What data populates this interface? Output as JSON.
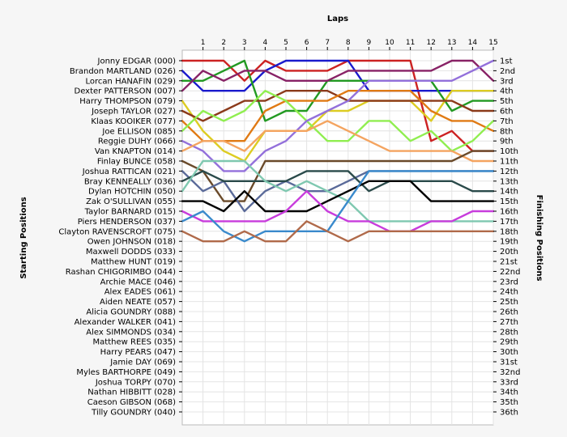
{
  "chart_data": {
    "type": "line",
    "title": "",
    "xlabel": "Laps",
    "ylabel_left": "Starting Positions",
    "ylabel_right": "Finishing Positions",
    "x": [
      0,
      1,
      2,
      3,
      4,
      5,
      6,
      7,
      8,
      9,
      10,
      11,
      12,
      13,
      14,
      15
    ],
    "x_tick_labels": [
      "1",
      "2",
      "3",
      "4",
      "5",
      "6",
      "7",
      "8",
      "9",
      "10",
      "11",
      "12",
      "13",
      "14",
      "15"
    ],
    "ylim": [
      1,
      36
    ],
    "y_inverted": true,
    "grid": true,
    "starting_positions": [
      "Jonny EDGAR (000)",
      "Brandon MARTLAND (026)",
      "Lorcan HANAFIN (029)",
      "Dexter PATTERSON (007)",
      "Harry THOMPSON (079)",
      "Joseph TAYLOR (027)",
      "Klaas KOOIKER (077)",
      "Joe ELLISON (085)",
      "Reggie DUHY (066)",
      "Van KNAPTON (014)",
      "Finlay BUNCE (058)",
      "Joshua RATTICAN (021)",
      "Bray KENNEALLY (036)",
      "Dylan HOTCHIN (050)",
      "Zak O'SULLIVAN (055)",
      "Taylor BARNARD (015)",
      "Piers HENDERSON (037)",
      "Clayton RAVENSCROFT (075)",
      "Owen JOHNSON (018)",
      "Maxwell DODDS (033)",
      "Matthew HUNT (019)",
      "Rashan CHIGORIMBO (044)",
      "Archie MACE (046)",
      "Alex EADES (061)",
      "Aiden NEATE (057)",
      "Alicia GOUNDRY (088)",
      "Alexander WALKER (041)",
      "Alex SIMMONDS (034)",
      "Matthew REES (035)",
      "Harry PEARS (047)",
      "Jamie DAY (069)",
      "Myles BARTHORPE (049)",
      "Joshua TORPY (070)",
      "Nathan HIBBITT (028)",
      "Caeson GIBSON (068)",
      "Tilly GOUNDRY (040)"
    ],
    "finishing_positions": [
      "1st",
      "2nd",
      "3rd",
      "4th",
      "5th",
      "6th",
      "7th",
      "8th",
      "9th",
      "10th",
      "11th",
      "12th",
      "13th",
      "14th",
      "15th",
      "16th",
      "17th",
      "18th",
      "19th",
      "20th",
      "21st",
      "22nd",
      "23rd",
      "24th",
      "25th",
      "26th",
      "27th",
      "28th",
      "29th",
      "30th",
      "31st",
      "32nd",
      "33rd",
      "34th",
      "35th",
      "36th"
    ],
    "series": [
      {
        "color": "#cc2222",
        "values": [
          1,
          1,
          1,
          3,
          1,
          2,
          2,
          2,
          1,
          1,
          1,
          1,
          9,
          8,
          10,
          10
        ]
      },
      {
        "color": "#1a1acc",
        "values": [
          2,
          4,
          4,
          4,
          2,
          1,
          1,
          1,
          1,
          4,
          4,
          4,
          4,
          4,
          4,
          4
        ]
      },
      {
        "color": "#229922",
        "values": [
          3,
          3,
          2,
          1,
          7,
          6,
          6,
          3,
          3,
          3,
          3,
          3,
          3,
          6,
          5,
          5
        ]
      },
      {
        "color": "#882266",
        "values": [
          4,
          2,
          3,
          2,
          2,
          3,
          3,
          3,
          2,
          2,
          2,
          2,
          2,
          1,
          1,
          3
        ]
      },
      {
        "color": "#ddcc22",
        "values": [
          5,
          8,
          10,
          11,
          8,
          8,
          8,
          6,
          6,
          5,
          5,
          5,
          7,
          4,
          4,
          4
        ]
      },
      {
        "color": "#8b3a1a",
        "values": [
          6,
          7,
          6,
          5,
          5,
          4,
          4,
          4,
          5,
          5,
          5,
          5,
          5,
          5,
          6,
          6
        ]
      },
      {
        "color": "#e07a14",
        "values": [
          7,
          9,
          9,
          9,
          6,
          5,
          5,
          5,
          4,
          4,
          4,
          4,
          6,
          7,
          7,
          8
        ]
      },
      {
        "color": "#90ee50",
        "values": [
          8,
          6,
          7,
          6,
          4,
          5,
          7,
          9,
          9,
          7,
          7,
          9,
          8,
          10,
          9,
          7
        ]
      },
      {
        "color": "#9370db",
        "values": [
          9,
          10,
          12,
          12,
          10,
          9,
          7,
          6,
          5,
          3,
          3,
          3,
          3,
          3,
          2,
          1
        ]
      },
      {
        "color": "#f4a460",
        "values": [
          10,
          9,
          9,
          10,
          8,
          8,
          8,
          7,
          8,
          9,
          10,
          10,
          10,
          10,
          11,
          11
        ]
      },
      {
        "color": "#6a4a2a",
        "values": [
          11,
          12,
          15,
          15,
          11,
          11,
          11,
          11,
          11,
          11,
          11,
          11,
          11,
          11,
          10,
          10
        ]
      },
      {
        "color": "#5a6a99",
        "values": [
          12,
          14,
          13,
          16,
          14,
          13,
          14,
          14,
          13,
          12,
          12,
          12,
          12,
          12,
          12,
          12
        ]
      },
      {
        "color": "#2a4a4a",
        "values": [
          13,
          12,
          13,
          13,
          13,
          13,
          12,
          12,
          12,
          14,
          13,
          13,
          13,
          13,
          14,
          14
        ]
      },
      {
        "color": "#7fc8b0",
        "values": [
          14,
          11,
          11,
          11,
          13,
          14,
          13,
          14,
          15,
          17,
          17,
          17,
          17,
          17,
          17,
          17
        ]
      },
      {
        "color": "#000000",
        "values": [
          15,
          15,
          16,
          14,
          16,
          16,
          16,
          15,
          14,
          13,
          13,
          13,
          15,
          15,
          15,
          15
        ]
      },
      {
        "color": "#c83cdc",
        "values": [
          16,
          17,
          17,
          17,
          17,
          16,
          14,
          16,
          17,
          17,
          18,
          18,
          17,
          17,
          16,
          16
        ]
      },
      {
        "color": "#3a8acc",
        "values": [
          17,
          16,
          18,
          19,
          18,
          18,
          18,
          18,
          15,
          12,
          12,
          12,
          12,
          12,
          12,
          12
        ]
      },
      {
        "color": "#b06a4a",
        "values": [
          18,
          19,
          19,
          18,
          19,
          19,
          17,
          18,
          19,
          18,
          18,
          18,
          18,
          18,
          18,
          18
        ]
      }
    ]
  }
}
